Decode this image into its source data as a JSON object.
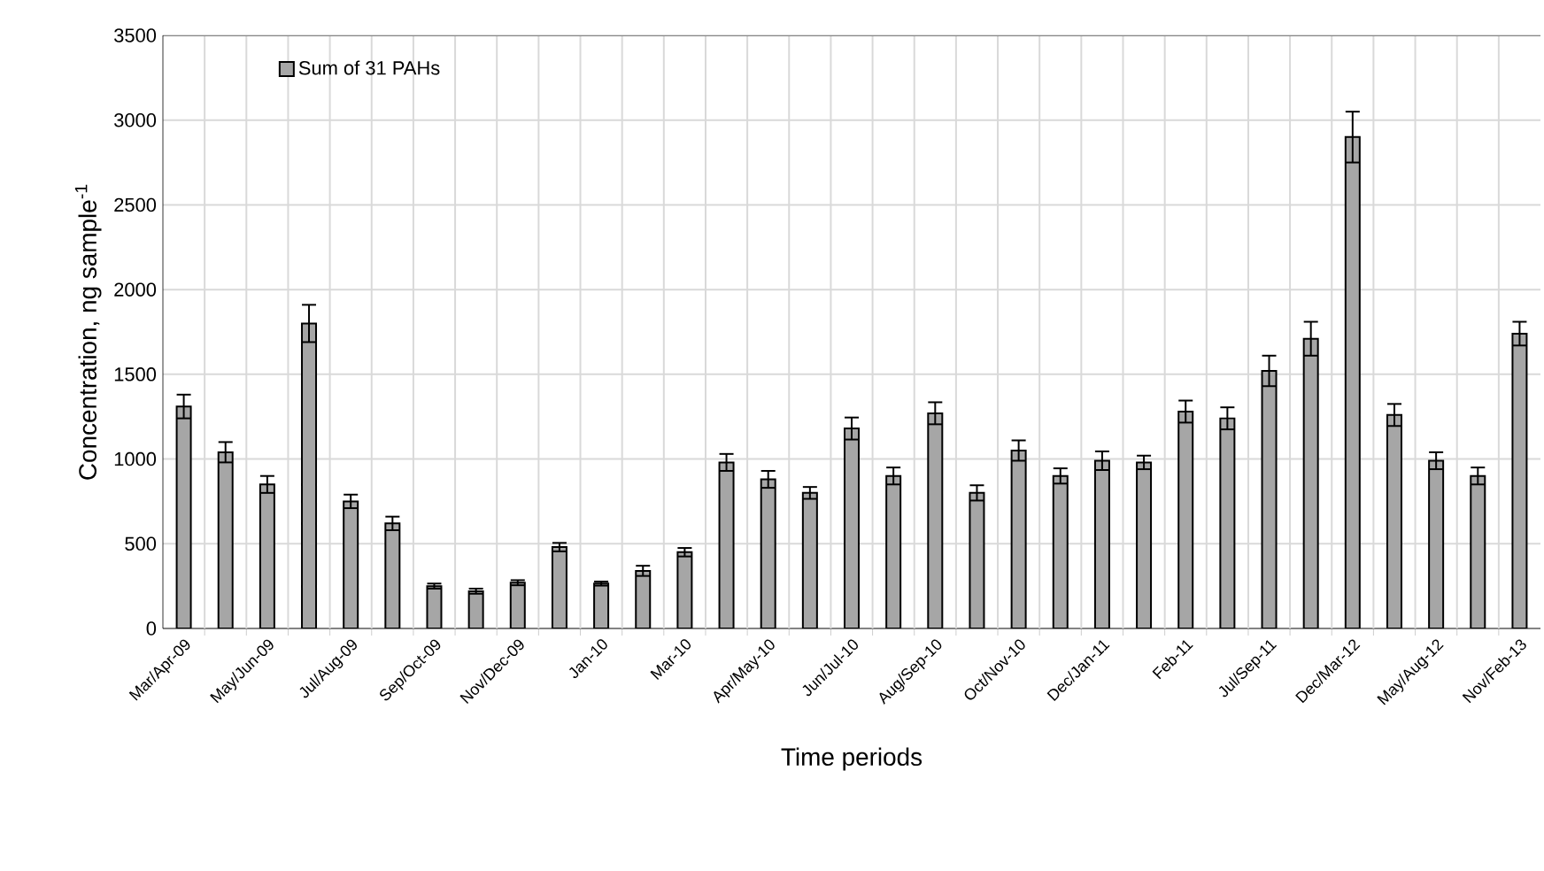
{
  "chart_data": {
    "type": "bar",
    "xlabel": "Time periods",
    "ylabel": "Concentration,  ng sample$^{-1}$",
    "categories": [
      "Mar/Apr-09",
      null,
      "May/Jun-09",
      null,
      "Jul/Aug-09",
      null,
      "Sep/Oct-09",
      null,
      "Nov/Dec-09",
      null,
      "Jan-10",
      null,
      "Mar-10",
      null,
      "Apr/May-10",
      null,
      "Jun/Jul-10",
      null,
      "Aug/Sep-10",
      null,
      "Oct/Nov-10",
      null,
      "Dec/Jan-11",
      null,
      "Feb-11",
      null,
      "Jul/Sep-11",
      null,
      "Dec/Mar-12",
      null,
      "May/Aug-12",
      null,
      "Nov/Feb-13"
    ],
    "series": [
      {
        "name": "Sum of 31 PAHs",
        "color": "#a6a6a6",
        "values": [
          1310,
          1040,
          850,
          1800,
          750,
          620,
          250,
          220,
          270,
          480,
          265,
          340,
          450,
          980,
          880,
          800,
          1180,
          900,
          1270,
          800,
          1050,
          900,
          990,
          980,
          1280,
          1240,
          1520,
          1710,
          2900,
          1260,
          990,
          900,
          1740
        ],
        "errors": [
          70,
          60,
          50,
          110,
          40,
          40,
          15,
          15,
          15,
          25,
          12,
          30,
          25,
          50,
          50,
          35,
          65,
          50,
          65,
          45,
          60,
          45,
          55,
          40,
          65,
          65,
          90,
          100,
          150,
          65,
          50,
          50,
          70
        ]
      }
    ],
    "ylim": [
      0,
      3500
    ],
    "yticks": [
      0,
      500,
      1000,
      1500,
      2000,
      2500,
      3000,
      3500
    ],
    "grid": true,
    "legend": "top left"
  }
}
